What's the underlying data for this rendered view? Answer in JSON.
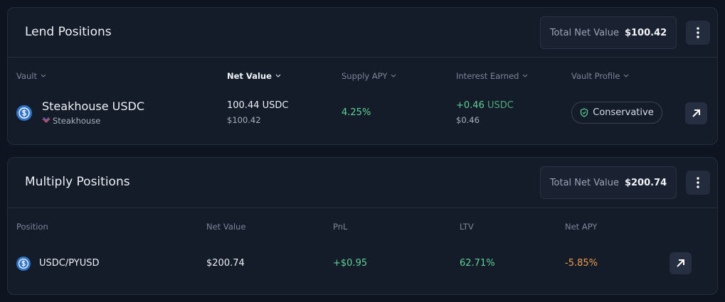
{
  "lend_positions": {
    "title": "Lend Positions",
    "total_label": "Total Net Value",
    "total_value": "$100.42",
    "columns": [
      "Vault",
      "Net Value",
      "Supply APY",
      "Interest Earned",
      "Vault Profile"
    ],
    "rows": [
      {
        "vault": "Steakhouse USDC",
        "curator": "Steakhouse",
        "net_value": "100.44 USDC",
        "net_value_usd": "$100.42",
        "supply_apy": "4.25%",
        "interest_earned": "+0.46",
        "interest_unit": "USDC",
        "interest_usd": "$0.46",
        "vault_profile": "Conservative"
      }
    ]
  },
  "multiply_positions": {
    "title": "Multiply Positions",
    "total_label": "Total Net Value",
    "total_value": "$200.74",
    "columns": [
      "Position",
      "Net Value",
      "PnL",
      "LTV",
      "Net APY"
    ],
    "rows": [
      {
        "position": "USDC/PYUSD",
        "net_value": "$200.74",
        "pnl": "+$0.95",
        "ltv": "62.71%",
        "net_apy": "-5.85%"
      }
    ]
  }
}
